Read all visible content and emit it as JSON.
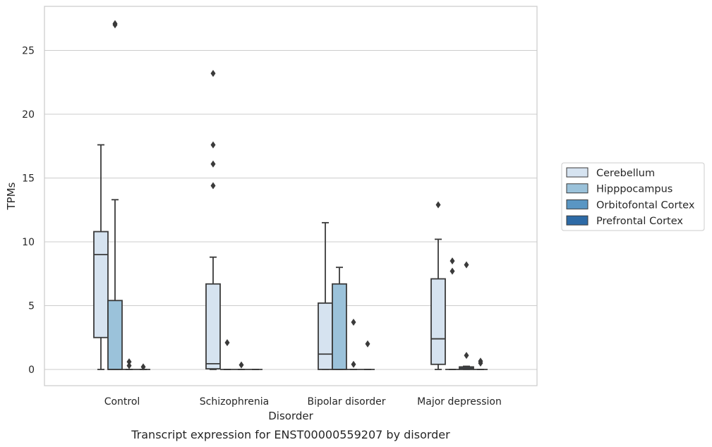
{
  "chart_data": {
    "type": "box",
    "xlabel": "Disorder",
    "ylabel": "TPMs",
    "caption": "Transcript expression for ENST00000559207 by disorder",
    "categories": [
      "Control",
      "Schizophrenia",
      "Bipolar disorder",
      "Major depression"
    ],
    "ylim": [
      -1.3,
      28.5
    ],
    "yticks": [
      0,
      5,
      10,
      15,
      20,
      25
    ],
    "grid": "horizontal",
    "legend_position": "right",
    "series": [
      {
        "name": "Cerebellum",
        "color": "#d6e3f0",
        "boxes": [
          {
            "min": 0,
            "q1": 2.5,
            "median": 9.0,
            "q3": 10.8,
            "max": 17.6,
            "outliers": []
          },
          {
            "min": 0,
            "q1": 0.05,
            "median": 0.45,
            "q3": 6.7,
            "max": 8.8,
            "outliers": [
              23.2,
              17.6,
              16.1,
              14.4
            ]
          },
          {
            "min": 0,
            "q1": 0,
            "median": 1.2,
            "q3": 5.2,
            "max": 11.5,
            "outliers": []
          },
          {
            "min": 0,
            "q1": 0.4,
            "median": 2.4,
            "q3": 7.1,
            "max": 10.2,
            "outliers": [
              12.9
            ]
          }
        ]
      },
      {
        "name": "Hipppocampus",
        "color": "#9bc2da",
        "boxes": [
          {
            "min": 0,
            "q1": 0,
            "median": 0,
            "q3": 5.4,
            "max": 13.3,
            "outliers": [
              27.0,
              27.1
            ]
          },
          {
            "min": 0,
            "q1": 0,
            "median": 0,
            "q3": 0,
            "max": 0,
            "outliers": [
              2.1
            ]
          },
          {
            "min": 0,
            "q1": 0,
            "median": 0,
            "q3": 6.7,
            "max": 8.0,
            "outliers": []
          },
          {
            "min": 0,
            "q1": 0,
            "median": 0,
            "q3": 0,
            "max": 0,
            "outliers": [
              8.5,
              7.7
            ]
          }
        ]
      },
      {
        "name": "Orbitofontal Cortex",
        "color": "#5a96c3",
        "boxes": [
          {
            "min": 0,
            "q1": 0,
            "median": 0,
            "q3": 0,
            "max": 0,
            "outliers": [
              0.6,
              0.3
            ]
          },
          {
            "min": 0,
            "q1": 0,
            "median": 0,
            "q3": 0,
            "max": 0,
            "outliers": [
              0.35
            ]
          },
          {
            "min": 0,
            "q1": 0,
            "median": 0,
            "q3": 0,
            "max": 0,
            "outliers": [
              3.7,
              0.4
            ]
          },
          {
            "min": 0,
            "q1": 0,
            "median": 0.1,
            "q3": 0.2,
            "max": 0.25,
            "outliers": [
              1.1,
              8.2
            ]
          }
        ]
      },
      {
        "name": "Prefrontal Cortex",
        "color": "#2d6aa6",
        "boxes": [
          {
            "min": 0,
            "q1": 0,
            "median": 0,
            "q3": 0,
            "max": 0,
            "outliers": [
              0.2
            ]
          },
          {
            "min": 0,
            "q1": 0,
            "median": 0,
            "q3": 0,
            "max": 0,
            "outliers": []
          },
          {
            "min": 0,
            "q1": 0,
            "median": 0,
            "q3": 0,
            "max": 0,
            "outliers": [
              2.0
            ]
          },
          {
            "min": 0,
            "q1": 0,
            "median": 0,
            "q3": 0,
            "max": 0,
            "outliers": [
              0.65,
              0.5
            ]
          }
        ]
      }
    ]
  }
}
